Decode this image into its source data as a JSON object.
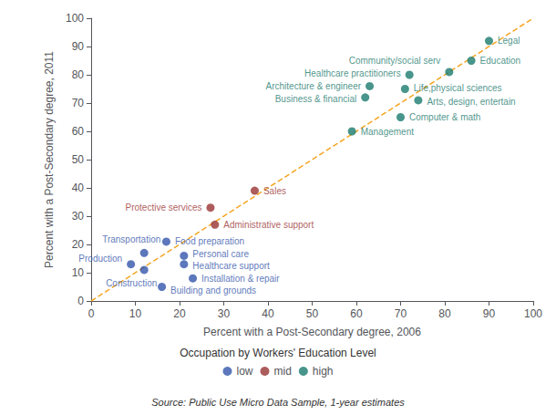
{
  "chart_data": {
    "type": "scatter",
    "xlabel": "Percent with a Post-Secondary degree, 2006",
    "ylabel": "Percent with a Post-Secondary degree, 2011",
    "xlim": [
      0,
      100
    ],
    "ylim": [
      0,
      100
    ],
    "xticks": [
      0,
      10,
      20,
      30,
      40,
      50,
      60,
      70,
      80,
      90,
      100
    ],
    "yticks": [
      0,
      10,
      20,
      30,
      40,
      50,
      60,
      70,
      80,
      90,
      100
    ],
    "grid": false,
    "legend": "bottom",
    "legend_title": "Occupation by Workers' Education Level",
    "source": "Source: Public Use Micro Data Sample, 1-year estimates",
    "series": [
      {
        "type": "line",
        "line_style": "dashed",
        "color": "#f5a623",
        "x": [
          0,
          100
        ],
        "values": [
          0,
          100
        ]
      },
      {
        "name": "low",
        "type": "scatter",
        "color": "#3355aa",
        "x": [
          9,
          12,
          12,
          17,
          16,
          21,
          21,
          23
        ],
        "values": [
          13,
          17,
          11,
          21,
          5,
          16,
          13,
          8
        ],
        "labels": [
          "Production",
          "Transportation",
          "Construction",
          "Food preparation",
          "Building and grounds",
          "Personal care",
          "Healthcare support",
          "Installation & repair"
        ]
      },
      {
        "name": "mid",
        "type": "scatter",
        "color": "#993333",
        "x": [
          27,
          28,
          37
        ],
        "values": [
          33,
          27,
          39
        ],
        "labels": [
          "Protective services",
          "Administrative support",
          "Sales"
        ]
      },
      {
        "name": "high",
        "type": "scatter",
        "color": "#1a7a6e",
        "x": [
          59,
          70,
          62,
          63,
          74,
          71,
          72,
          81,
          86,
          90
        ],
        "values": [
          60,
          65,
          72,
          76,
          71,
          75,
          80,
          81,
          85,
          92
        ],
        "labels": [
          "Management",
          "Computer & math",
          "Business & financial",
          "Architecture & engineer",
          "Arts, design, entertain",
          "Life,physical sciences",
          "Healthcare practitioners",
          "Community/social serv",
          "Education",
          "Legal"
        ]
      }
    ]
  }
}
